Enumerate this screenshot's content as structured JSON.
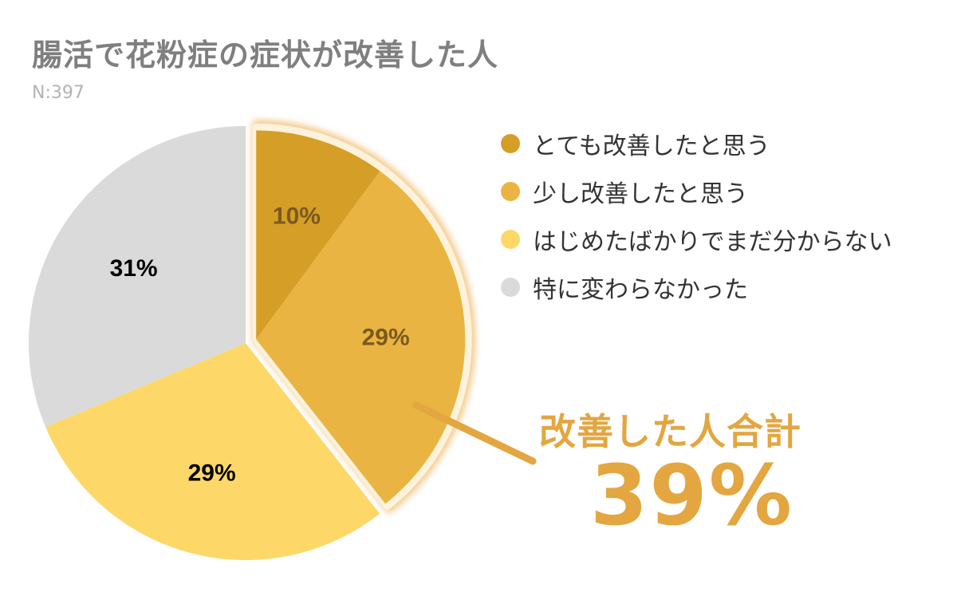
{
  "title": "腸活で花粉症の症状が改善した人",
  "subtitle": "N:397",
  "chart_data": {
    "type": "pie",
    "title": "腸活で花粉症の症状が改善した人",
    "n": "N:397",
    "slices": [
      {
        "label": "とても改善したと思う",
        "value": 10,
        "display": "10%",
        "color": "#d59e27",
        "text_color": "#7a5a20"
      },
      {
        "label": "少し改善したと思う",
        "value": 29,
        "display": "29%",
        "color": "#e9b441",
        "text_color": "#7a5a20"
      },
      {
        "label": "はじめたばかりでまだ分からない",
        "value": 29,
        "display": "29%",
        "color": "#fdd868",
        "text_color": "#000000"
      },
      {
        "label": "特に変わらなかった",
        "value": 31,
        "display": "31%",
        "color": "#dadada",
        "text_color": "#000000"
      }
    ],
    "legend_position": "right",
    "highlighted_slices": [
      0,
      1
    ],
    "callout": {
      "label": "改善した人合計",
      "value": "39%",
      "color": "#e3a640"
    }
  }
}
